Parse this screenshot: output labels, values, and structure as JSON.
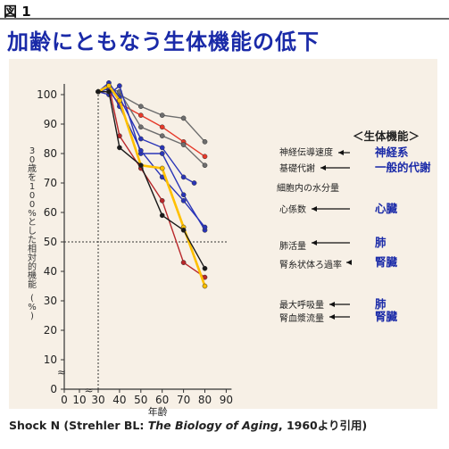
{
  "figure_label": "図 1",
  "title": "加齢にともなう生体機能の低下",
  "citation": {
    "prefix": "Shock N (Strehler BL: ",
    "book": "The Biology of Aging",
    "suffix": ", 1960より引用)"
  },
  "legend_header": "＜生体機能＞",
  "chart_data": {
    "type": "line",
    "title": "",
    "xlabel": "年齢",
    "ylabel": "30歳を100%とした相対的機能 (%)",
    "xlim": [
      0,
      90
    ],
    "ylim": [
      0,
      100
    ],
    "x_ticks": [
      0,
      10,
      30,
      40,
      50,
      60,
      70,
      80,
      90
    ],
    "y_ticks": [
      0,
      10,
      20,
      30,
      40,
      50,
      60,
      70,
      80,
      90,
      100
    ],
    "reference_line_y": 50,
    "reference_line_x": 30,
    "axis_break": "≈",
    "series": [
      {
        "name": "神経伝導速度",
        "color": "#6e6e6e",
        "x": [
          30,
          35,
          40,
          50,
          60,
          70,
          80
        ],
        "y": [
          101,
          101,
          100,
          96,
          93,
          92,
          84
        ],
        "annotation": "神経系",
        "annotation_color": "#1a2aa8"
      },
      {
        "name": "基礎代謝",
        "color": "#e63a2a",
        "x": [
          30,
          35,
          40,
          50,
          60,
          70,
          80
        ],
        "y": [
          101,
          101,
          97,
          93,
          89,
          84,
          79
        ],
        "annotation": "一般的代謝",
        "annotation_color": "#1a2aa8"
      },
      {
        "name": "細胞内の水分量",
        "color": "#6e6e6e",
        "x": [
          30,
          35,
          40,
          50,
          60,
          70,
          80
        ],
        "y": [
          101,
          102,
          101,
          89,
          86,
          83,
          76
        ],
        "annotation": "",
        "annotation_color": ""
      },
      {
        "name": "心係数",
        "color": "#2a35b8",
        "x": [
          30,
          35,
          40,
          50,
          60,
          70,
          75
        ],
        "y": [
          101,
          104,
          99,
          85,
          82,
          72,
          70
        ],
        "annotation": "心臓",
        "annotation_color": "#1a2aa8"
      },
      {
        "name": "肺活量",
        "color": "#2a35b8",
        "x": [
          30,
          35,
          40,
          50,
          60,
          70,
          80
        ],
        "y": [
          101,
          100,
          103,
          80,
          80,
          66,
          54
        ],
        "annotation": "肺",
        "annotation_color": "#1a2aa8"
      },
      {
        "name": "腎糸状体ろ過率",
        "color": "#2a35b8",
        "x": [
          30,
          35,
          40,
          50,
          60,
          70,
          80
        ],
        "y": [
          101,
          102,
          96,
          81,
          72,
          64,
          55
        ],
        "annotation": "腎臓",
        "annotation_color": "#1a2aa8"
      },
      {
        "name": "最大呼吸量",
        "color": "#b8272a",
        "x": [
          30,
          35,
          40,
          50,
          60,
          70,
          80
        ],
        "y": [
          101,
          103,
          86,
          75,
          64,
          43,
          38
        ],
        "annotation": "肺",
        "annotation_color": "#1a2aa8"
      },
      {
        "name": "腎血漿流量",
        "color": "#ffc000",
        "x": [
          30,
          35,
          40,
          50,
          60,
          70,
          80
        ],
        "y": [
          101,
          103,
          98,
          76,
          75,
          55,
          35
        ],
        "annotation": "腎臓",
        "annotation_color": "#1a2aa8"
      },
      {
        "name": "",
        "color": "#1a1a1a",
        "x": [
          30,
          35,
          40,
          50,
          60,
          70,
          80
        ],
        "y": [
          101,
          101,
          82,
          76,
          59,
          54,
          41
        ],
        "annotation": "",
        "annotation_color": ""
      }
    ]
  }
}
